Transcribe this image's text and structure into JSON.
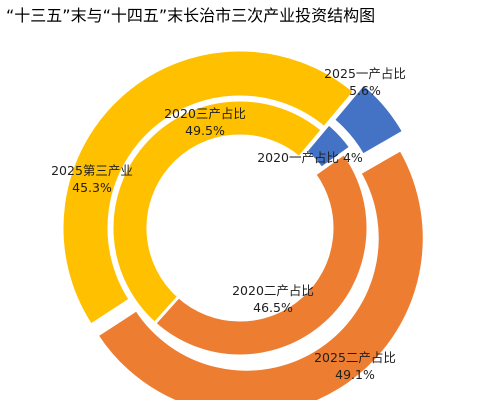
{
  "chart_data": {
    "type": "donut",
    "title": "“十三五”末与“十四五”末长治市三次产业投资结构图",
    "categories": [
      "一产",
      "二产",
      "三产"
    ],
    "series": [
      {
        "ring": "inner",
        "labels": [
          "2020一产占比 4%",
          "2020二产占比\n46.5%",
          "2020三产占比\n49.5%"
        ],
        "values": [
          4.0,
          46.5,
          49.5
        ]
      },
      {
        "ring": "outer",
        "labels": [
          "2025一产占比\n5.6%",
          "2025二产占比\n49.1%",
          "2025第三产业\n45.3%"
        ],
        "values": [
          5.6,
          49.1,
          45.3
        ]
      }
    ],
    "colors": [
      "#4472c4",
      "#ed7d31",
      "#ffc000"
    ],
    "legend": "none"
  }
}
